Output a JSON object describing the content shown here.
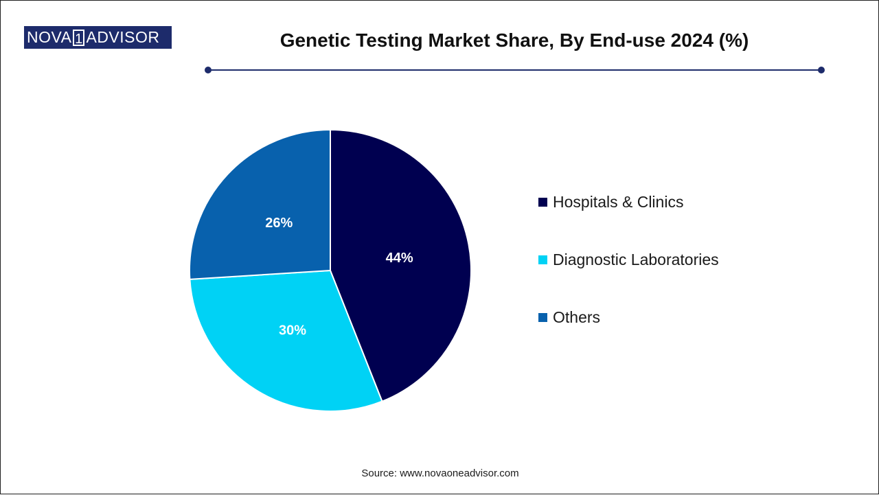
{
  "logo": {
    "prefix": "NOVA",
    "one": "1",
    "suffix": "ADVISOR"
  },
  "title": "Genetic Testing Market Share, By End-use 2024 (%)",
  "source": "Source: www.novaoneadvisor.com",
  "colors": {
    "brand": "#1d2b6b",
    "hospitals": "#000050",
    "diagnostic": "#00d2f5",
    "others": "#0861ad"
  },
  "chart_data": {
    "type": "pie",
    "title": "Genetic Testing Market Share, By End-use 2024 (%)",
    "legend_position": "right",
    "slices": [
      {
        "label": "Hospitals & Clinics",
        "value": 44,
        "display": "44%",
        "color": "#000050"
      },
      {
        "label": "Diagnostic Laboratories",
        "value": 30,
        "display": "30%",
        "color": "#00d2f5"
      },
      {
        "label": "Others",
        "value": 26,
        "display": "26%",
        "color": "#0861ad"
      }
    ]
  }
}
